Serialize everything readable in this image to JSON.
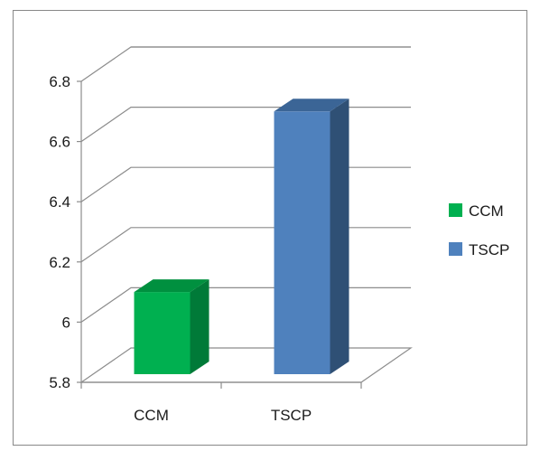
{
  "chart_data": {
    "type": "bar",
    "style": "3d-column",
    "categories": [
      "CCM",
      "TSCP"
    ],
    "series": [
      {
        "values": [
          6.1,
          6.7
        ],
        "colors": [
          "#00b050",
          "#4f81bd"
        ]
      }
    ],
    "point_colors": {
      "CCM": {
        "front": "#00b050",
        "side": "#007a38",
        "top": "#00903f"
      },
      "TSCP": {
        "front": "#4f81bd",
        "side": "#2f5075",
        "top": "#3b6596"
      }
    },
    "yticks": [
      "5.8",
      "6",
      "6.2",
      "6.4",
      "6.6",
      "6.8"
    ],
    "yvalues": [
      5.8,
      6.0,
      6.2,
      6.4,
      6.6,
      6.8
    ],
    "ylim": [
      5.8,
      6.8
    ],
    "title": "",
    "xlabel": "",
    "ylabel": "",
    "grid": true,
    "legend": {
      "placement": "right",
      "entries": [
        {
          "label": "CCM",
          "color": "#00b050"
        },
        {
          "label": "TSCP",
          "color": "#4f81bd"
        }
      ]
    }
  }
}
